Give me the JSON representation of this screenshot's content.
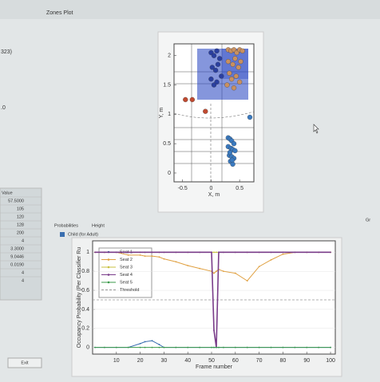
{
  "window_title": "Zones Plot",
  "fragments": {
    "left_top": "323)",
    "left_mid": ".0",
    "right_edge": "Gr"
  },
  "table": {
    "header": "Value",
    "rows": [
      "57.5000",
      "105",
      "120",
      "128",
      "200",
      "4",
      "3.3000",
      "9.0446",
      "0.0190",
      "4",
      "4"
    ]
  },
  "exit_button": "Exit",
  "tabs": [
    "Probabilities",
    "Height"
  ],
  "checkbox": "Child (for Adult)",
  "chart_data": [
    {
      "type": "scatter",
      "x_label": "X, m",
      "y_label": "Y, m",
      "xlim": [
        -0.65,
        0.75
      ],
      "ylim": [
        -0.15,
        2.2
      ],
      "xticks": [
        -0.5,
        0,
        0.5
      ],
      "yticks": [
        0,
        0.5,
        1,
        1.5,
        2
      ],
      "series": [
        {
          "color": "#3a7ac0",
          "x": [
            0.3,
            0.33,
            0.36,
            0.4,
            0.3,
            0.35,
            0.38,
            0.42,
            0.32,
            0.36,
            0.4,
            0.34,
            0.38,
            0.37,
            0.33,
            0.68
          ],
          "y": [
            0.6,
            0.58,
            0.55,
            0.5,
            0.45,
            0.42,
            0.4,
            0.38,
            0.3,
            0.28,
            0.25,
            0.2,
            0.15,
            0.22,
            0.35,
            0.95
          ]
        },
        {
          "color": "#c89060",
          "x": [
            0.3,
            0.35,
            0.4,
            0.45,
            0.5,
            0.55,
            0.3,
            0.38,
            0.42,
            0.48,
            0.52,
            0.32,
            0.36,
            0.44,
            0.28,
            0.4,
            0.5
          ],
          "y": [
            2.1,
            2.08,
            2.1,
            2.05,
            2.1,
            2.08,
            1.9,
            1.85,
            1.95,
            1.8,
            1.9,
            1.7,
            1.6,
            1.65,
            1.5,
            1.45,
            1.55
          ]
        },
        {
          "color": "#2a3fa0",
          "x": [
            0,
            0.05,
            0.1,
            0.15,
            0.02,
            0.08,
            0.12,
            0,
            0.1,
            0.18,
            0.05
          ],
          "y": [
            2.05,
            2,
            2.08,
            1.95,
            1.8,
            1.75,
            1.85,
            1.6,
            1.55,
            1.65,
            1.5
          ]
        },
        {
          "color": "#c04a30",
          "x": [
            -0.45,
            -0.33,
            -0.1
          ],
          "y": [
            1.25,
            1.25,
            1.05
          ]
        }
      ]
    },
    {
      "type": "line",
      "x_label": "Frame number",
      "y_label": "Occupancy Probability (Per Classifier Ru",
      "xlim": [
        0,
        102
      ],
      "ylim": [
        -0.07,
        1.12
      ],
      "xticks": [
        10,
        20,
        30,
        40,
        50,
        60,
        70,
        80,
        90,
        100
      ],
      "yticks": [
        0,
        0.2,
        0.4,
        0.6,
        0.8,
        1
      ],
      "x": [
        1,
        5,
        10,
        15,
        20,
        22,
        25,
        28,
        30,
        35,
        40,
        45,
        50,
        51,
        52,
        53,
        55,
        60,
        65,
        70,
        75,
        80,
        85,
        90,
        95,
        100
      ],
      "series": [
        {
          "name": "Seat 1",
          "color": "#3a6fb0",
          "values": [
            0,
            0,
            0,
            0,
            0.04,
            0.06,
            0.07,
            0.03,
            0,
            0,
            0,
            0,
            0,
            0,
            0,
            0,
            0,
            0,
            0,
            0,
            0,
            0,
            0,
            0,
            0,
            0
          ]
        },
        {
          "name": "Seat 2",
          "color": "#e0a040",
          "values": [
            1,
            1,
            1,
            0.97,
            0.97,
            0.96,
            0.96,
            0.95,
            0.93,
            0.9,
            0.86,
            0.83,
            0.8,
            0.78,
            0.8,
            0.82,
            0.8,
            0.78,
            0.7,
            0.85,
            0.92,
            0.98,
            1,
            1,
            1,
            1
          ]
        },
        {
          "name": "Seat 3",
          "color": "#c8c040",
          "values": [
            1,
            1,
            1,
            1,
            1,
            1,
            1,
            1,
            1,
            1,
            1,
            1,
            1,
            1,
            1,
            1,
            1,
            1,
            1,
            1,
            1,
            1,
            1,
            1,
            1,
            1
          ]
        },
        {
          "name": "Seat 4",
          "color": "#7a3d8a",
          "values": [
            1,
            1,
            1,
            1,
            1,
            1,
            1,
            1,
            1,
            1,
            1,
            1,
            1,
            0.18,
            0,
            1,
            1,
            1,
            1,
            1,
            1,
            1,
            1,
            1,
            1,
            1
          ]
        },
        {
          "name": "Seat 5",
          "color": "#3a9a4a",
          "values": [
            0,
            0,
            0,
            0,
            0,
            0,
            0,
            0,
            0,
            0,
            0,
            0,
            0,
            0,
            0,
            0,
            0,
            0,
            0,
            0,
            0,
            0,
            0,
            0,
            0,
            0
          ]
        }
      ],
      "threshold": {
        "name": "Threshold",
        "value": 0.5,
        "color": "#999999"
      }
    }
  ]
}
